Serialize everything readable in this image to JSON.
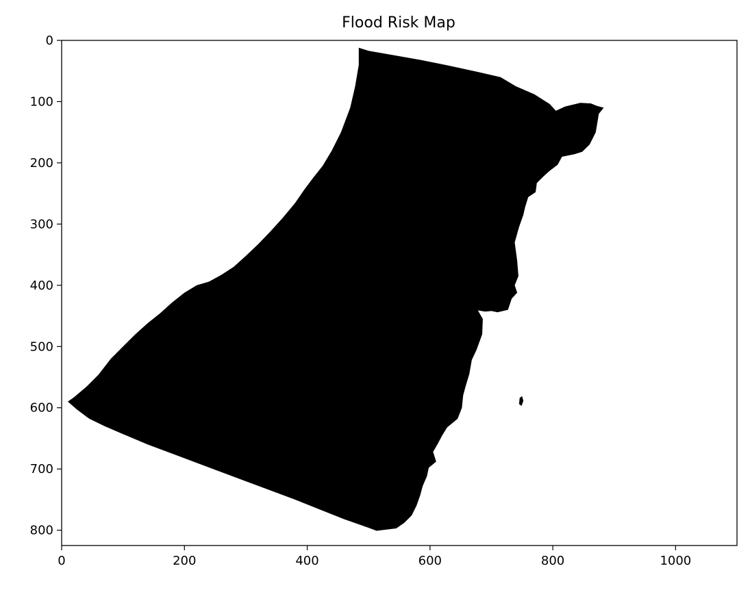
{
  "chart_data": {
    "type": "heatmap",
    "title": "Flood Risk Map",
    "xlabel": "",
    "ylabel": "",
    "xlim": [
      0,
      1100
    ],
    "ylim": [
      825,
      0
    ],
    "x_ticks": [
      0,
      200,
      400,
      600,
      800,
      1000
    ],
    "y_ticks": [
      0,
      100,
      200,
      300,
      400,
      500,
      600,
      700,
      800
    ],
    "grid": false,
    "colors": {
      "region": "#000000",
      "background": "#ffffff"
    },
    "regions": [
      {
        "value": 1,
        "polygon": [
          [
            484,
            12
          ],
          [
            500,
            17
          ],
          [
            540,
            24
          ],
          [
            585,
            32
          ],
          [
            630,
            41
          ],
          [
            680,
            52
          ],
          [
            715,
            60
          ],
          [
            740,
            75
          ],
          [
            770,
            88
          ],
          [
            795,
            104
          ],
          [
            805,
            115
          ],
          [
            820,
            108
          ],
          [
            845,
            102
          ],
          [
            862,
            103
          ],
          [
            872,
            107
          ],
          [
            883,
            110
          ],
          [
            875,
            120
          ],
          [
            870,
            150
          ],
          [
            860,
            170
          ],
          [
            848,
            182
          ],
          [
            835,
            186
          ],
          [
            815,
            190
          ],
          [
            808,
            203
          ],
          [
            795,
            213
          ],
          [
            785,
            222
          ],
          [
            774,
            233
          ],
          [
            772,
            248
          ],
          [
            760,
            256
          ],
          [
            755,
            272
          ],
          [
            752,
            285
          ],
          [
            745,
            305
          ],
          [
            738,
            330
          ],
          [
            742,
            360
          ],
          [
            744,
            385
          ],
          [
            738,
            400
          ],
          [
            742,
            412
          ],
          [
            733,
            422
          ],
          [
            727,
            440
          ],
          [
            710,
            444
          ],
          [
            700,
            442
          ],
          [
            690,
            443
          ],
          [
            678,
            441
          ],
          [
            686,
            455
          ],
          [
            685,
            480
          ],
          [
            676,
            505
          ],
          [
            668,
            522
          ],
          [
            664,
            545
          ],
          [
            658,
            565
          ],
          [
            654,
            580
          ],
          [
            652,
            600
          ],
          [
            645,
            618
          ],
          [
            628,
            632
          ],
          [
            620,
            645
          ],
          [
            612,
            660
          ],
          [
            605,
            672
          ],
          [
            610,
            688
          ],
          [
            598,
            698
          ],
          [
            595,
            712
          ],
          [
            588,
            728
          ],
          [
            584,
            743
          ],
          [
            578,
            760
          ],
          [
            570,
            776
          ],
          [
            558,
            788
          ],
          [
            545,
            797
          ],
          [
            513,
            801
          ],
          [
            500,
            796
          ],
          [
            460,
            782
          ],
          [
            420,
            766
          ],
          [
            380,
            750
          ],
          [
            340,
            735
          ],
          [
            300,
            720
          ],
          [
            260,
            705
          ],
          [
            220,
            690
          ],
          [
            180,
            675
          ],
          [
            140,
            660
          ],
          [
            100,
            643
          ],
          [
            70,
            630
          ],
          [
            45,
            618
          ],
          [
            25,
            603
          ],
          [
            10,
            590
          ],
          [
            20,
            583
          ],
          [
            40,
            566
          ],
          [
            60,
            546
          ],
          [
            80,
            520
          ],
          [
            100,
            500
          ],
          [
            120,
            480
          ],
          [
            140,
            462
          ],
          [
            160,
            446
          ],
          [
            180,
            428
          ],
          [
            200,
            412
          ],
          [
            220,
            400
          ],
          [
            240,
            394
          ],
          [
            260,
            383
          ],
          [
            280,
            370
          ],
          [
            300,
            352
          ],
          [
            320,
            333
          ],
          [
            340,
            312
          ],
          [
            360,
            290
          ],
          [
            380,
            266
          ],
          [
            395,
            244
          ],
          [
            410,
            224
          ],
          [
            425,
            205
          ],
          [
            440,
            180
          ],
          [
            455,
            150
          ],
          [
            470,
            110
          ],
          [
            478,
            75
          ],
          [
            484,
            40
          ],
          [
            484,
            12
          ]
        ]
      },
      {
        "value": 1,
        "polygon": [
          [
            746,
            584
          ],
          [
            750,
            581
          ],
          [
            752,
            589
          ],
          [
            749,
            597
          ],
          [
            745,
            594
          ]
        ]
      }
    ]
  }
}
